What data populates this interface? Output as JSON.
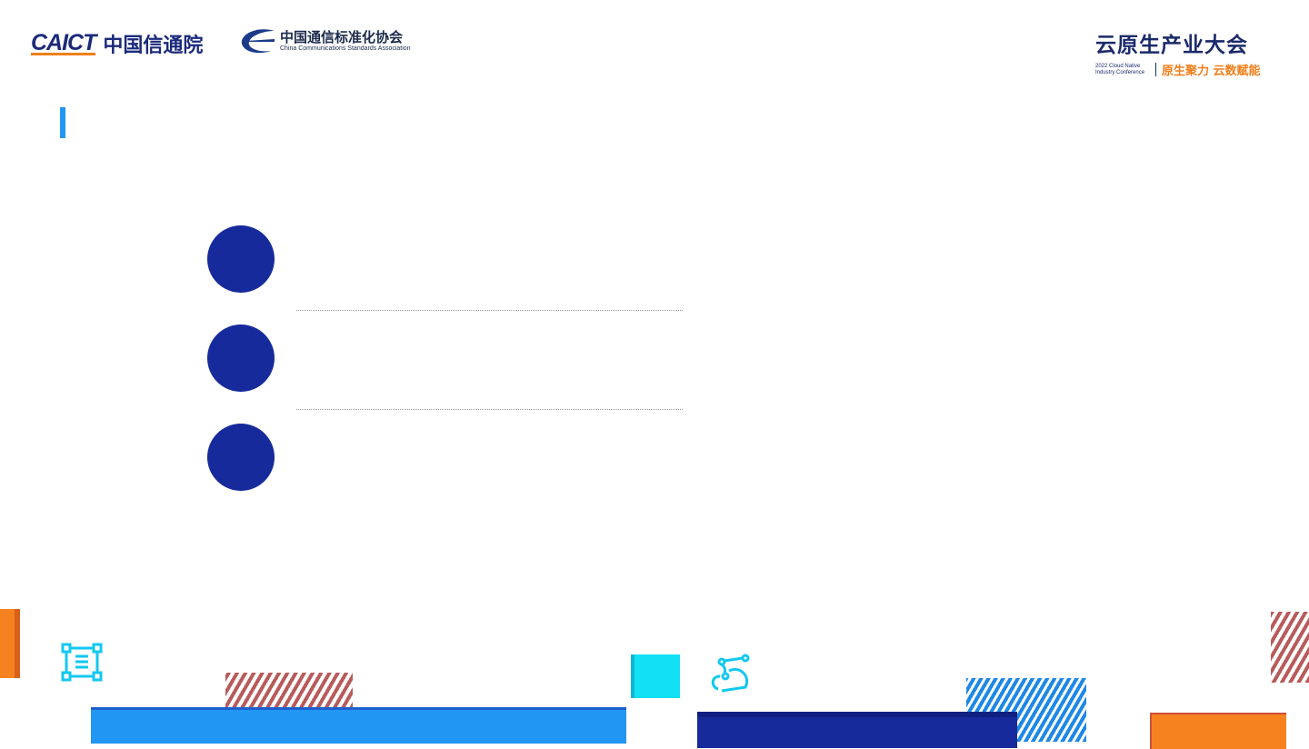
{
  "header": {
    "logo_caict": {
      "en": "CAICT",
      "zh": "中国信通院"
    },
    "logo_ccsa": {
      "zh": "中国通信标准化协会",
      "en": "China Communications Standards Association"
    },
    "logo_conference": {
      "zh": "云原生产业大会",
      "en_line1": "2022 Cloud Native",
      "en_line2": "Industry Conference",
      "slogan": "原生聚力 云数赋能"
    }
  },
  "colors": {
    "accent_blue": "#2196f3",
    "navy": "#172a9c",
    "orange": "#f5821f",
    "cyan": "#12e0f5",
    "stripe_red": "#b85b5b"
  },
  "list": {
    "items": [
      {
        "marker": "circle"
      },
      {
        "marker": "circle"
      },
      {
        "marker": "circle"
      }
    ]
  },
  "decor_icons": [
    "ladder-icon",
    "cloud-network-icon"
  ]
}
